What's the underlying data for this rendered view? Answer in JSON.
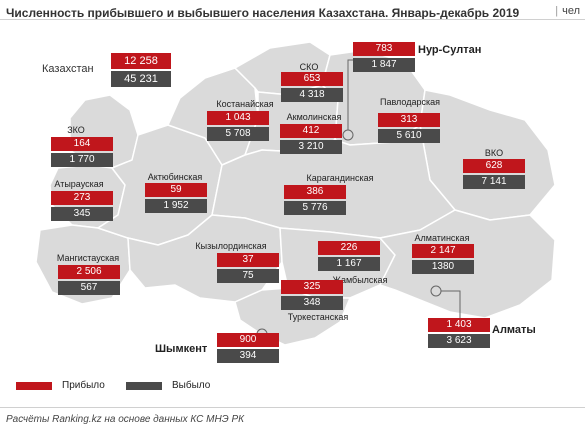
{
  "header": {
    "title": "Численность прибывшего и выбывшего населения Казахстана. Январь-декабрь 2019",
    "unit": "чел"
  },
  "chart_data": {
    "type": "map",
    "title": "Численность прибывшего и выбывшего населения Казахстана. Январь-декабрь 2019",
    "unit": "чел",
    "series": [
      {
        "key": "arrived",
        "name": "Прибыло"
      },
      {
        "key": "departed",
        "name": "Выбыло"
      }
    ],
    "total": {
      "name": "Казахстан",
      "arrived": "12 258",
      "departed": "45 231"
    },
    "regions": [
      {
        "name": "ЗКО",
        "arrived": "164",
        "departed": "1 770"
      },
      {
        "name": "Атырауская",
        "arrived": "273",
        "departed": "345"
      },
      {
        "name": "Мангистауская",
        "arrived": "2 506",
        "departed": "567"
      },
      {
        "name": "Актюбинская",
        "arrived": "59",
        "departed": "1 952"
      },
      {
        "name": "Костанайская",
        "arrived": "1 043",
        "departed": "5 708"
      },
      {
        "name": "СКО",
        "arrived": "653",
        "departed": "4 318"
      },
      {
        "name": "Акмолинская",
        "arrived": "412",
        "departed": "3 210"
      },
      {
        "name": "Павлодарская",
        "arrived": "313",
        "departed": "5 610"
      },
      {
        "name": "ВКО",
        "arrived": "628",
        "departed": "7 141"
      },
      {
        "name": "Карагандинская",
        "arrived": "386",
        "departed": "5 776"
      },
      {
        "name": "Кызылординская",
        "arrived": "37",
        "departed": "75"
      },
      {
        "name": "Жамбылская",
        "arrived": "226",
        "departed": "1 167"
      },
      {
        "name": "Алматинская",
        "arrived": "2 147",
        "departed": "1380"
      },
      {
        "name": "Туркестанская",
        "arrived": "325",
        "departed": "348"
      },
      {
        "name": "Нур-Султан",
        "arrived": "783",
        "departed": "1 847"
      },
      {
        "name": "Алматы",
        "arrived": "1 403",
        "departed": "3 623"
      },
      {
        "name": "Шымкент",
        "arrived": "900",
        "departed": "394"
      }
    ]
  },
  "legend": {
    "arrived_label": "Прибыло",
    "departed_label": "Выбыло"
  },
  "footer": {
    "source": "Расчёты Ranking.kz на основе данных КС МНЭ РК"
  },
  "colors": {
    "arrived": "#c0161c",
    "departed": "#4a4a4a",
    "map_fill": "#dadada",
    "map_border": "#ffffff"
  }
}
